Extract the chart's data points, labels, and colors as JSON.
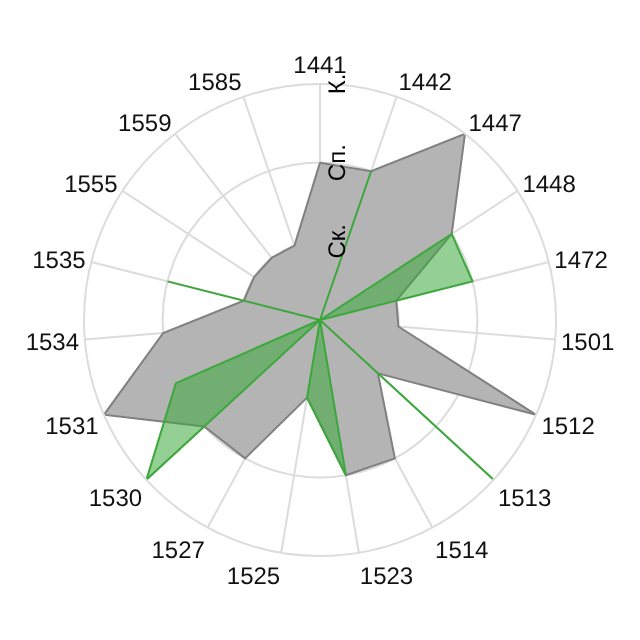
{
  "chart_data": {
    "type": "radar",
    "categories": [
      "1441",
      "1442",
      "1447",
      "1448",
      "1472",
      "1501",
      "1512",
      "1513",
      "1514",
      "1523",
      "1525",
      "1527",
      "1530",
      "1531",
      "1534",
      "1535",
      "1555",
      "1559",
      "1585"
    ],
    "series": [
      {
        "color": "#b4b4b4",
        "values": [
          2,
          2,
          3,
          2,
          1,
          1,
          3,
          1,
          2,
          2,
          1,
          2,
          2,
          3,
          2,
          1,
          1,
          1,
          1
        ]
      },
      {
        "color": "#3ca83c",
        "values": [
          0,
          2,
          0,
          2,
          2,
          0,
          0,
          3,
          0,
          2,
          1,
          0,
          3,
          2,
          0,
          2,
          0,
          0,
          0
        ]
      }
    ],
    "ylim": [
      0,
      3
    ],
    "yticks": [
      {
        "value": 1,
        "label": "Ск."
      },
      {
        "value": 2,
        "label": "Сп."
      },
      {
        "value": 3,
        "label": "К."
      }
    ],
    "grid": true
  }
}
